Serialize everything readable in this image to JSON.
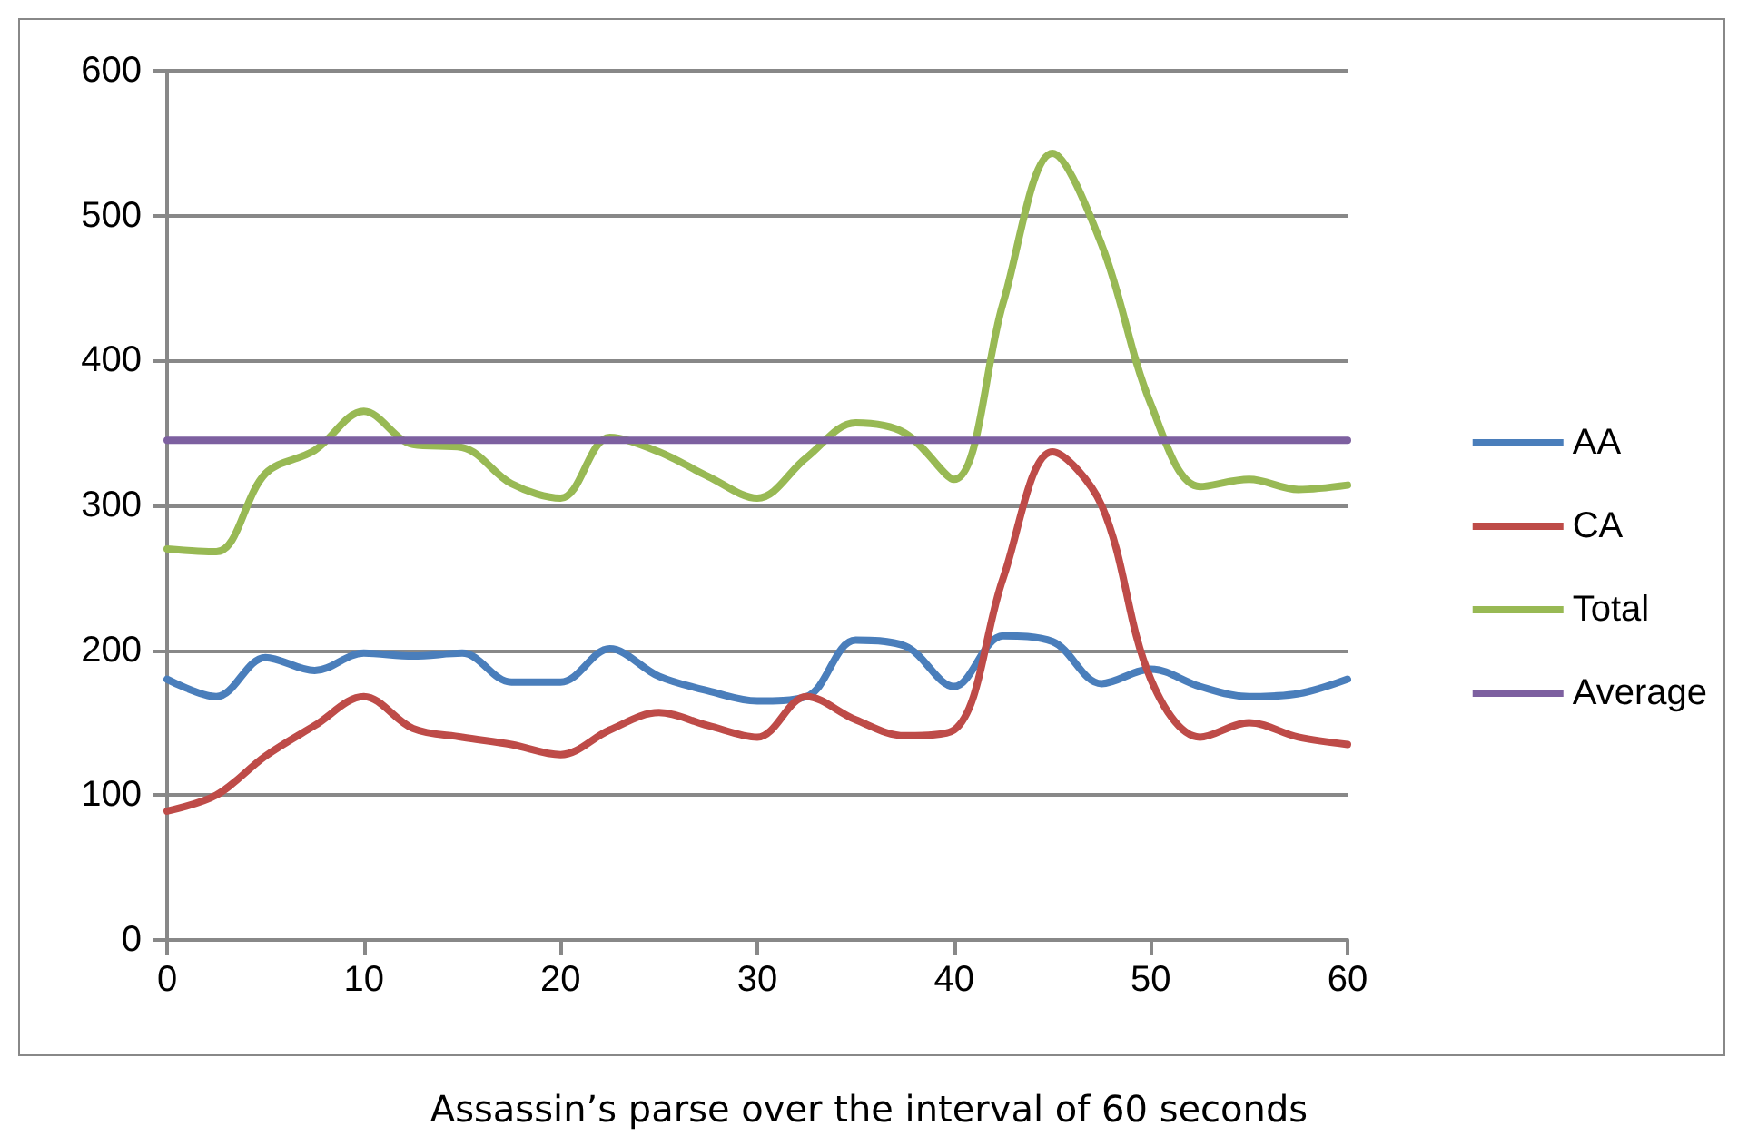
{
  "chart_data": {
    "type": "line",
    "title": "Assassin’s parse over the interval of 60 seconds",
    "x": [
      0,
      2.5,
      5,
      7.5,
      10,
      12.5,
      15,
      17.5,
      20,
      22.5,
      25,
      27.5,
      30,
      32.5,
      35,
      37.5,
      40,
      42.5,
      45,
      47.5,
      50,
      52.5,
      55,
      57.5,
      60
    ],
    "series": [
      {
        "name": "AA",
        "color": "#4a7ebb",
        "values": [
          180,
          168,
          195,
          186,
          198,
          196,
          198,
          178,
          178,
          201,
          182,
          172,
          165,
          168,
          207,
          203,
          175,
          210,
          206,
          177,
          187,
          175,
          168,
          170,
          180
        ]
      },
      {
        "name": "CA",
        "color": "#be4b48",
        "values": [
          89,
          100,
          127,
          148,
          168,
          146,
          140,
          135,
          128,
          145,
          157,
          148,
          140,
          168,
          152,
          141,
          145,
          250,
          337,
          300,
          180,
          140,
          150,
          140,
          135
        ]
      },
      {
        "name": "Total",
        "color": "#98b954",
        "values": [
          270,
          268,
          322,
          338,
          365,
          342,
          340,
          315,
          305,
          347,
          337,
          320,
          305,
          333,
          357,
          350,
          318,
          440,
          543,
          480,
          370,
          313,
          318,
          311,
          314
        ]
      },
      {
        "name": "Average",
        "color": "#7d60a0",
        "x": [
          0,
          60
        ],
        "values": [
          345,
          345
        ]
      }
    ],
    "xlim": [
      0,
      60
    ],
    "xticks": [
      0,
      10,
      20,
      30,
      40,
      50,
      60
    ],
    "ylim": [
      0,
      600
    ],
    "yticks": [
      0,
      100,
      200,
      300,
      400,
      500,
      600
    ],
    "grid": "y",
    "legend": "right",
    "marker": "none",
    "line_style": "solid"
  }
}
